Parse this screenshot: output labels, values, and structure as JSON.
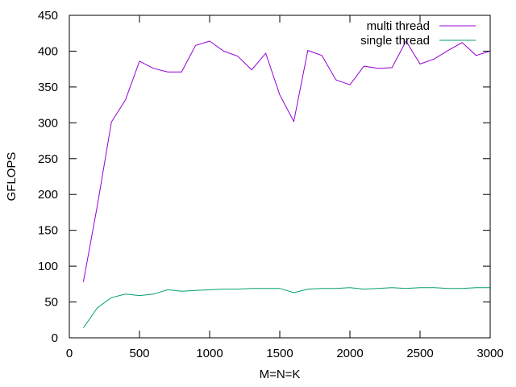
{
  "chart_data": {
    "type": "line",
    "xlabel": "M=N=K",
    "ylabel": "GFLOPS",
    "xlim": [
      0,
      3000
    ],
    "ylim": [
      0,
      450
    ],
    "xticks": [
      0,
      500,
      1000,
      1500,
      2000,
      2500,
      3000
    ],
    "yticks": [
      0,
      50,
      100,
      150,
      200,
      250,
      300,
      350,
      400,
      450
    ],
    "grid": false,
    "legend_position": "top-right",
    "series": [
      {
        "name": "multi thread",
        "color": "#9400d3",
        "x": [
          100,
          200,
          300,
          400,
          500,
          600,
          700,
          800,
          900,
          1000,
          1100,
          1200,
          1300,
          1400,
          1500,
          1600,
          1700,
          1800,
          1900,
          2000,
          2100,
          2200,
          2300,
          2400,
          2500,
          2600,
          2700,
          2800,
          2900,
          3000
        ],
        "y": [
          78,
          185,
          301,
          332,
          386,
          376,
          371,
          371,
          408,
          414,
          400,
          393,
          374,
          397,
          339,
          302,
          401,
          394,
          360,
          353,
          379,
          376,
          377,
          414,
          382,
          389,
          401,
          412,
          394,
          400
        ]
      },
      {
        "name": "single thread",
        "color": "#009e73",
        "x": [
          100,
          200,
          300,
          400,
          500,
          600,
          700,
          800,
          900,
          1000,
          1100,
          1200,
          1300,
          1400,
          1500,
          1600,
          1700,
          1800,
          1900,
          2000,
          2100,
          2200,
          2300,
          2400,
          2500,
          2600,
          2700,
          2800,
          2900,
          3000
        ],
        "y": [
          14,
          42,
          56,
          61,
          59,
          61,
          67,
          65,
          66,
          67,
          68,
          68,
          69,
          69,
          69,
          63,
          68,
          69,
          69,
          70,
          68,
          69,
          70,
          69,
          70,
          70,
          69,
          69,
          70,
          70
        ]
      }
    ]
  }
}
